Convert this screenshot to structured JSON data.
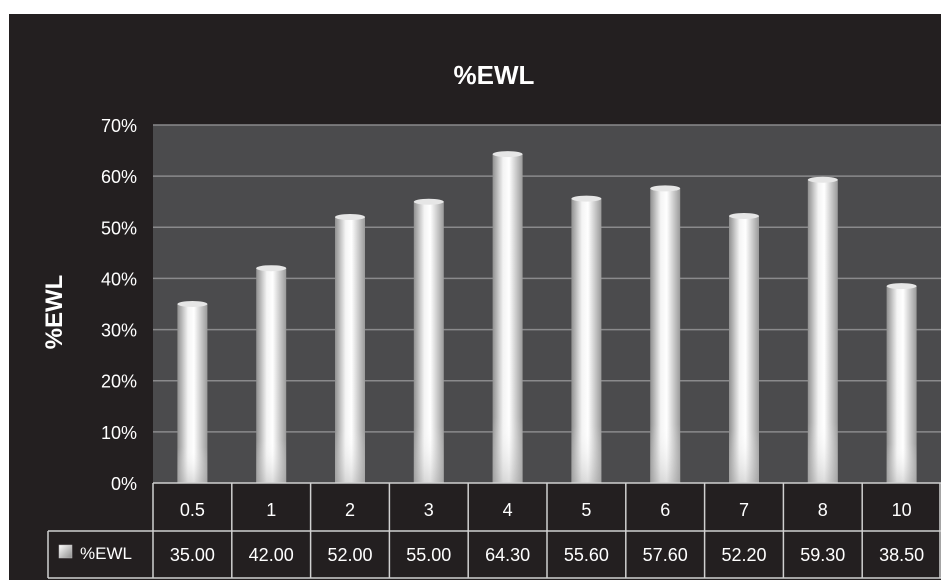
{
  "chart_data": {
    "type": "bar",
    "title": "%EWL",
    "ylabel": "%EWL",
    "xlabel": "",
    "categories": [
      "0.5",
      "1",
      "2",
      "3",
      "4",
      "5",
      "6",
      "7",
      "8",
      "10"
    ],
    "series": [
      {
        "name": "%EWL",
        "values": [
          35.0,
          42.0,
          52.0,
          55.0,
          64.3,
          55.6,
          57.6,
          52.2,
          59.3,
          38.5
        ],
        "table_labels": [
          "35.00",
          "42.00",
          "52.00",
          "55.00",
          "64.30",
          "55.60",
          "57.60",
          "52.20",
          "59.30",
          "38.50"
        ]
      }
    ],
    "ylim": [
      0,
      70
    ],
    "yticks": [
      0,
      10,
      20,
      30,
      40,
      50,
      60,
      70
    ],
    "ytick_suffix": "%",
    "grid": true,
    "data_table": true,
    "legend_placement": "data-table",
    "colors": {
      "page_background": "#231f20",
      "plot_background": "#4b4b4d",
      "gridline": "#8a8a8c",
      "bar_light": "#ffffff",
      "bar_dark": "#a8a8a8",
      "text": "#ffffff",
      "table_border": "#d0d0d0"
    }
  }
}
